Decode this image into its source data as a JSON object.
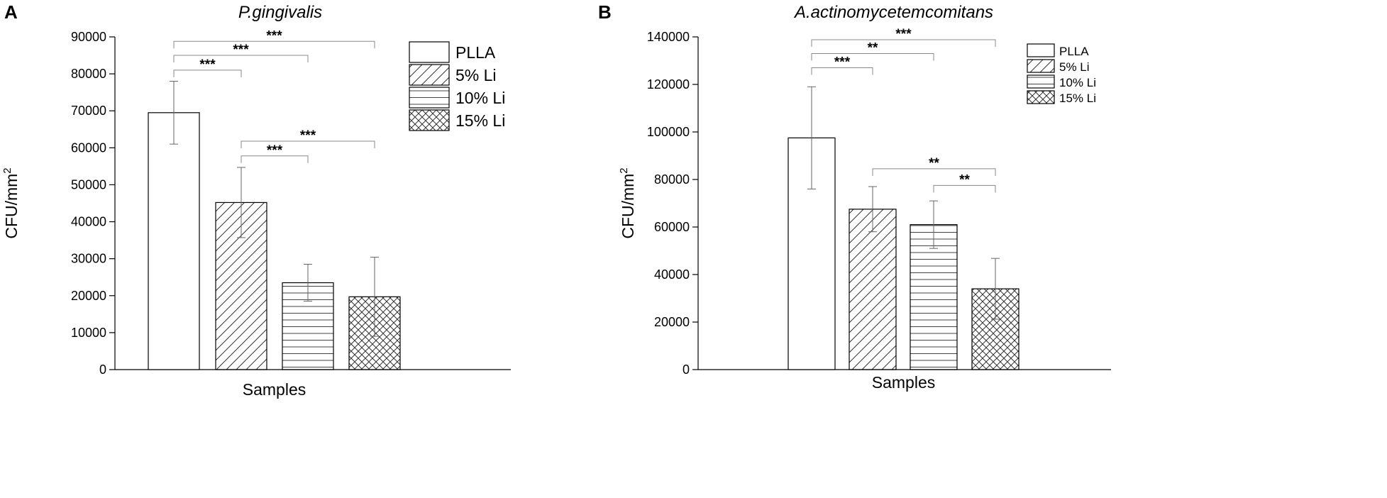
{
  "chart_data": [
    {
      "panel": "A",
      "type": "bar",
      "title": "P.gingivalis",
      "xlabel": "Samples",
      "ylabel": "CFU/mm",
      "ylabel_superscript": "2",
      "ylim": [
        0,
        90000
      ],
      "yticks": [
        "0",
        "10000",
        "20000",
        "30000",
        "40000",
        "50000",
        "60000",
        "70000",
        "80000",
        "90000"
      ],
      "categories": [
        "PLLA",
        "5% Li",
        "10% Li",
        "15% Li"
      ],
      "values": [
        69500,
        45200,
        23500,
        19700
      ],
      "errors": [
        8500,
        9500,
        5000,
        10700
      ],
      "patterns": [
        "none",
        "diagonal",
        "horizontal",
        "crosshatch"
      ],
      "legend": [
        "PLLA",
        "5% Li",
        "10% Li",
        "15% Li"
      ],
      "legend_position": "top-right",
      "significance": [
        {
          "from": 0,
          "to": 1,
          "label": "***",
          "y": 81000
        },
        {
          "from": 0,
          "to": 2,
          "label": "***",
          "y": 85000
        },
        {
          "from": 0,
          "to": 3,
          "label": "***",
          "y": 88800
        },
        {
          "from": 1,
          "to": 2,
          "label": "***",
          "y": 57800
        },
        {
          "from": 1,
          "to": 3,
          "label": "***",
          "y": 61800
        }
      ]
    },
    {
      "panel": "B",
      "type": "bar",
      "title": "A.actinomycetemcomitans",
      "xlabel": "Samples",
      "ylabel": "CFU/mm",
      "ylabel_superscript": "2",
      "ylim": [
        0,
        140000
      ],
      "yticks": [
        "0",
        "20000",
        "40000",
        "60000",
        "80000",
        "100000",
        "120000",
        "140000"
      ],
      "categories": [
        "PLLA",
        "5% Li",
        "10% Li",
        "15% Li"
      ],
      "values": [
        97500,
        67500,
        61000,
        34000
      ],
      "errors": [
        21500,
        9500,
        10000,
        12800
      ],
      "patterns": [
        "none",
        "diagonal",
        "horizontal",
        "crosshatch"
      ],
      "legend": [
        "PLLA",
        "5% Li",
        "10% Li",
        "15% Li"
      ],
      "legend_position": "top-right",
      "significance": [
        {
          "from": 0,
          "to": 1,
          "label": "***",
          "y": 127000
        },
        {
          "from": 0,
          "to": 2,
          "label": "**",
          "y": 133000
        },
        {
          "from": 0,
          "to": 3,
          "label": "***",
          "y": 138800
        },
        {
          "from": 1,
          "to": 3,
          "label": "**",
          "y": 84500
        },
        {
          "from": 2,
          "to": 3,
          "label": "**",
          "y": 77500
        }
      ]
    }
  ]
}
